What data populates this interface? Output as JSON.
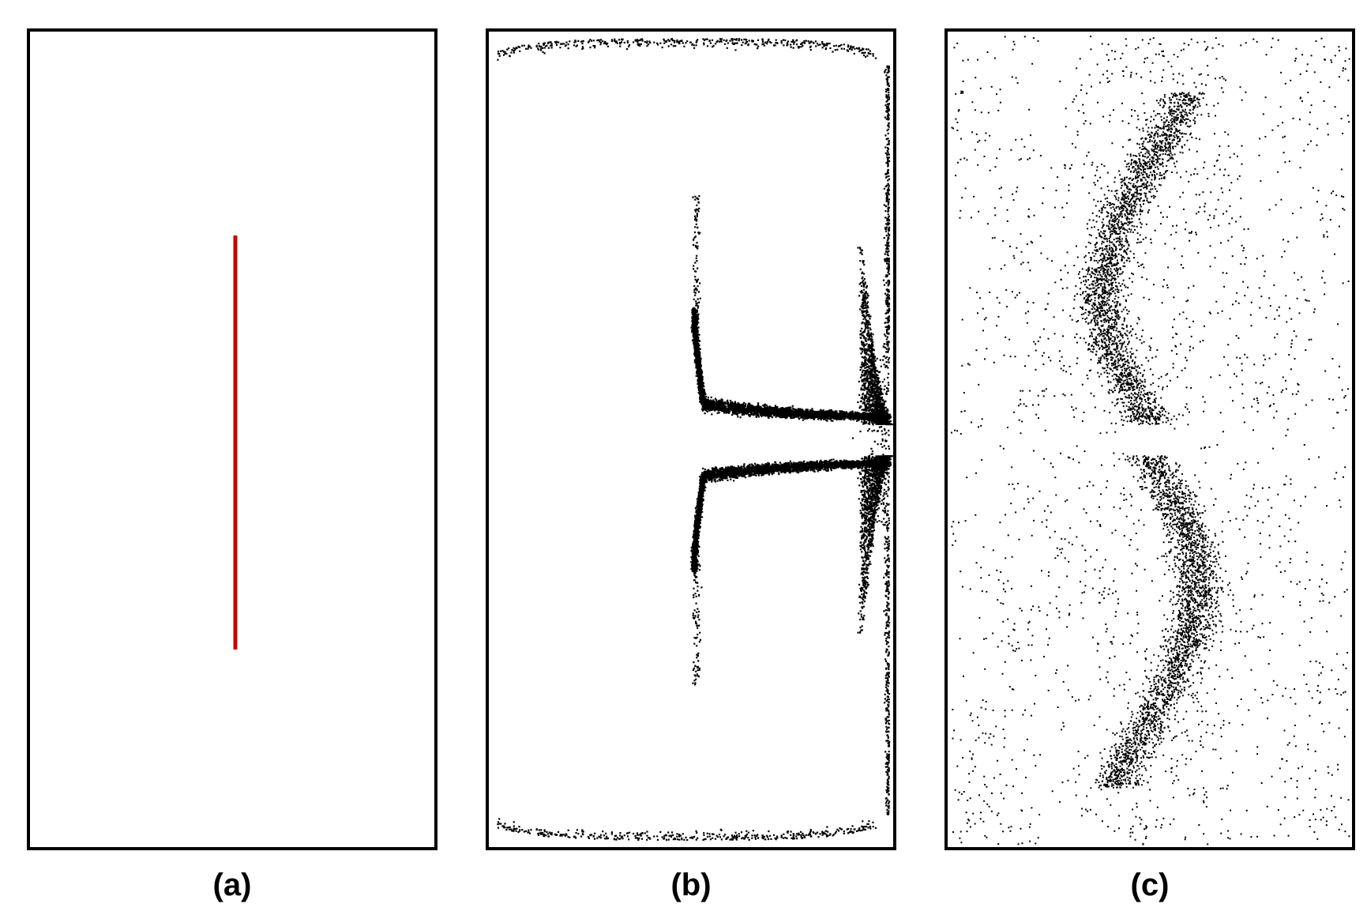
{
  "panels": [
    {
      "id": "a",
      "label": "(a)",
      "content": "initial-vertical-line"
    },
    {
      "id": "b",
      "label": "(b)",
      "content": "partially-mixed-particles"
    },
    {
      "id": "c",
      "label": "(c)",
      "content": "fully-mixed-particles"
    }
  ],
  "colors": {
    "frame": "#000000",
    "initial_line": "#cc0000",
    "particles": "#000000",
    "background": "#ffffff"
  }
}
